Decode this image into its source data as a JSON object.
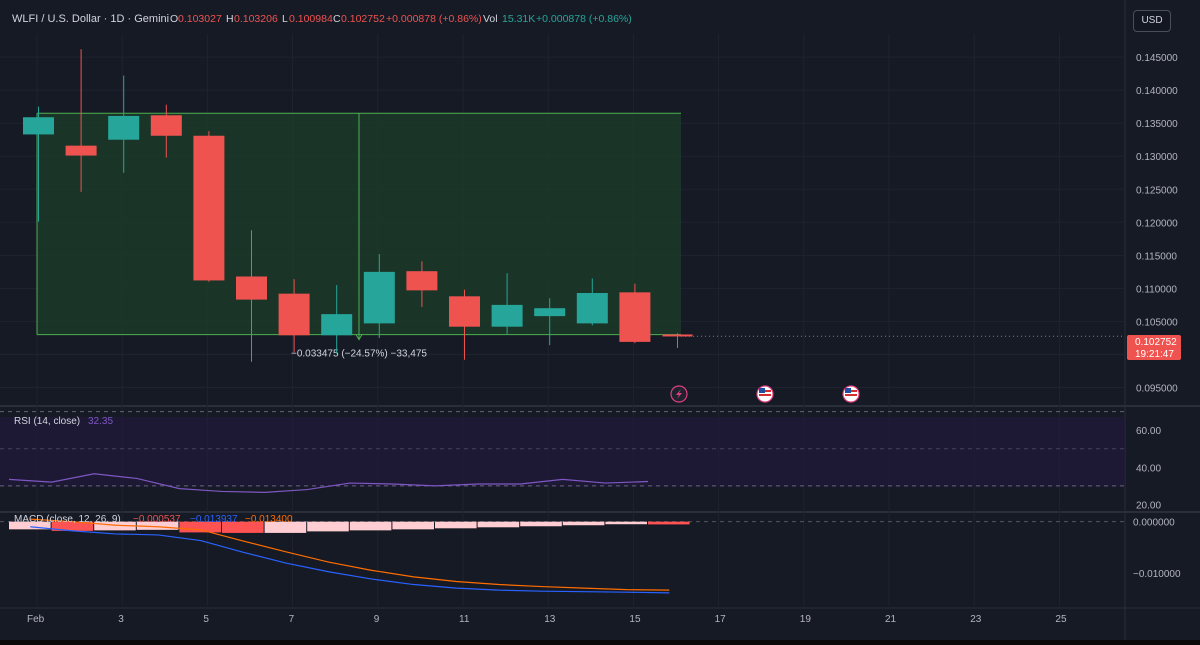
{
  "header": {
    "symbol": "WLFI / U.S. Dollar · 1D · Gemini",
    "open_label": "O",
    "open": "0.103027",
    "high_label": "H",
    "high": "0.103206",
    "low_label": "L",
    "low": "0.100984",
    "close_label": "C",
    "close": "0.102752",
    "change": "+0.000878 (+0.86%)",
    "vol_label": "Vol",
    "vol": "15.31K",
    "vol_change": "+0.000878 (+0.86%)"
  },
  "currency_button": "USD",
  "price_badge": {
    "price": "0.102752",
    "countdown": "19:21:47"
  },
  "measure_label": "−0.033475 (−24.57%) −33,475",
  "rsi": {
    "title": "RSI (14, close)",
    "value": "32.35"
  },
  "macd": {
    "title": "MACD (close, 12, 26, 9)",
    "hist": "−0.000537",
    "macd": "−0.013937",
    "signal": "−0.013400"
  },
  "colors": {
    "up": "#26a69a",
    "down": "#ef5350",
    "rsi": "#7e57c2",
    "macd": "#2962ff",
    "signal": "#ff6d00",
    "measure": "#4caf50"
  },
  "chart_data": [
    {
      "type": "candlestick",
      "title": "WLFI / U.S. Dollar · 1D · Gemini",
      "x": [
        "Feb 1",
        "Feb 2",
        "Feb 3",
        "Feb 4",
        "Feb 5",
        "Feb 6",
        "Feb 7",
        "Feb 8",
        "Feb 9",
        "Feb 10",
        "Feb 11",
        "Feb 12",
        "Feb 13",
        "Feb 14",
        "Feb 15",
        "Feb 16"
      ],
      "open": [
        0.1333,
        0.1316,
        0.1325,
        0.1362,
        0.1331,
        0.1118,
        0.1092,
        0.1029,
        0.1047,
        0.1126,
        0.1088,
        0.1042,
        0.1058,
        0.1047,
        0.1094,
        0.103027
      ],
      "high": [
        0.1375,
        0.1462,
        0.1422,
        0.1378,
        0.1338,
        0.1188,
        0.1114,
        0.1105,
        0.1152,
        0.1141,
        0.1098,
        0.1123,
        0.1085,
        0.1115,
        0.1107,
        0.103206
      ],
      "low": [
        0.1201,
        0.1246,
        0.1275,
        0.1298,
        0.111,
        0.0989,
        0.1003,
        0.1001,
        0.1025,
        0.1072,
        0.0992,
        0.1031,
        0.1014,
        0.1044,
        0.1017,
        0.100984
      ],
      "close": [
        0.1359,
        0.1301,
        0.1361,
        0.1331,
        0.1112,
        0.1083,
        0.1029,
        0.1061,
        0.1125,
        0.1097,
        0.1042,
        0.1075,
        0.107,
        0.1093,
        0.1019,
        0.102752
      ],
      "ylim": [
        0.0925,
        0.1485
      ],
      "y_ticks": [
        "0.145000",
        "0.140000",
        "0.135000",
        "0.130000",
        "0.125000",
        "0.120000",
        "0.115000",
        "0.110000",
        "0.105000",
        "0.100000",
        "0.095000"
      ],
      "x_ticks": [
        "Feb",
        "3",
        "5",
        "7",
        "9",
        "11",
        "13",
        "15",
        "17",
        "19",
        "21",
        "23",
        "25"
      ],
      "grid": true,
      "measure_range": {
        "from": "Feb 1",
        "to": "Feb 16",
        "high": 0.1365,
        "low": 0.103
      }
    },
    {
      "type": "line",
      "title": "RSI (14, close)",
      "x": [
        "Feb 1",
        "Feb 2",
        "Feb 3",
        "Feb 4",
        "Feb 5",
        "Feb 6",
        "Feb 7",
        "Feb 8",
        "Feb 9",
        "Feb 10",
        "Feb 11",
        "Feb 12",
        "Feb 13",
        "Feb 14",
        "Feb 15",
        "Feb 16"
      ],
      "series": [
        {
          "name": "RSI",
          "values": [
            33.5,
            32.0,
            36.5,
            34.0,
            28.5,
            27.0,
            26.5,
            28.0,
            31.5,
            31.0,
            30.0,
            31.0,
            31.0,
            33.5,
            31.5,
            32.35
          ]
        }
      ],
      "ylim": [
        17,
        73
      ],
      "y_ticks": [
        "60.00",
        "40.00",
        "20.00"
      ],
      "bands": [
        70,
        50,
        30
      ]
    },
    {
      "type": "bar",
      "title": "MACD (close, 12, 26, 9)",
      "x": [
        "Feb 1",
        "Feb 2",
        "Feb 3",
        "Feb 4",
        "Feb 5",
        "Feb 6",
        "Feb 7",
        "Feb 8",
        "Feb 9",
        "Feb 10",
        "Feb 11",
        "Feb 12",
        "Feb 13",
        "Feb 14",
        "Feb 15",
        "Feb 16"
      ],
      "series": [
        {
          "name": "Histogram",
          "values": [
            -0.0015,
            -0.0018,
            -0.0017,
            -0.0016,
            -0.0021,
            -0.0022,
            -0.0022,
            -0.0019,
            -0.0017,
            -0.0015,
            -0.0013,
            -0.0011,
            -0.0009,
            -0.0007,
            -0.0005,
            -0.000537
          ]
        },
        {
          "name": "MACD",
          "values": [
            -0.001,
            -0.0018,
            -0.0024,
            -0.0026,
            -0.0037,
            -0.006,
            -0.0081,
            -0.0098,
            -0.0112,
            -0.0123,
            -0.013,
            -0.0134,
            -0.0136,
            -0.0137,
            -0.0138,
            -0.013937
          ]
        },
        {
          "name": "Signal",
          "values": [
            0.0005,
            0.0,
            -0.0007,
            -0.001,
            -0.0016,
            -0.0038,
            -0.0059,
            -0.0079,
            -0.0095,
            -0.0108,
            -0.0117,
            -0.0123,
            -0.0127,
            -0.013,
            -0.0133,
            -0.0134
          ]
        }
      ],
      "ylim": [
        -0.0165,
        0.0015
      ],
      "y_ticks": [
        "0.000000",
        "−0.010000"
      ]
    }
  ]
}
